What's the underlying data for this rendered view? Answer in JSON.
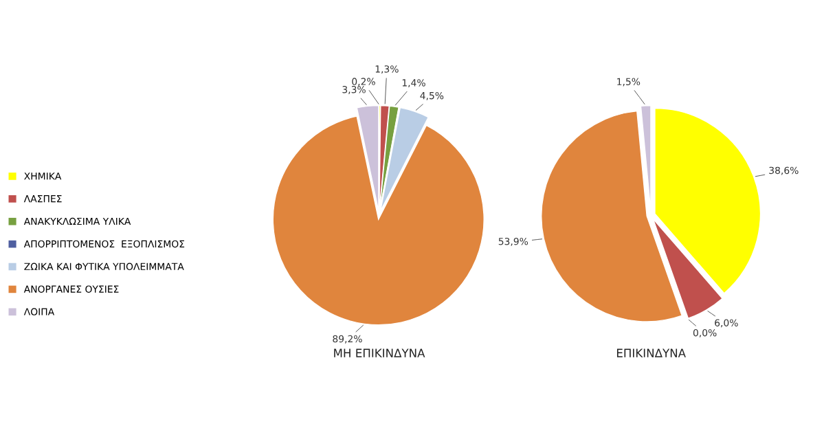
{
  "chart_data": [
    {
      "type": "pie",
      "title": "ΜΗ ΕΠΙΚΙΝΔΥΝΑ",
      "legend": "left",
      "categories": [
        "ΧΗΜΙΚΑ",
        "ΛΑΣΠΕΣ",
        "ΑΝΑΚΥΚΛΩΣΙΜΑ ΥΛΙΚΑ",
        "ΑΠΟΡΡΙΠΤΟΜΕΝΟΣ  ΕΞΟΠΛΙΣΜΟΣ",
        "ΖΩΙΚΑ ΚΑΙ ΦΥΤΙΚΑ ΥΠΟΛΕΙΜΜΑΤΑ",
        "ΑΝΟΡΓΑΝΕΣ ΟΥΣΙΕΣ",
        "ΛΟΙΠΑ"
      ],
      "values": [
        0.2,
        1.3,
        1.4,
        0.1,
        4.5,
        89.2,
        3.3
      ],
      "value_labels": [
        "0,2%",
        "1,3%",
        "1,4%",
        null,
        "4,5%",
        "89,2%",
        "3,3%"
      ],
      "colors": [
        "#ffff00",
        "#c0504d",
        "#77a040",
        "#4f5fa0",
        "#b9cde5",
        "#e0853d",
        "#ccc1da"
      ]
    },
    {
      "type": "pie",
      "title": "ΕΠΙΚΙΝΔΥΝΑ",
      "categories": [
        null,
        null,
        null,
        null,
        null
      ],
      "values": [
        38.6,
        6.0,
        0.0,
        53.9,
        1.5
      ],
      "value_labels": [
        "38,6%",
        "6,0%",
        "0,0%",
        "53,9%",
        "1,5%"
      ],
      "colors": [
        "#ffff00",
        "#c0504d",
        "#77a040",
        "#e0853d",
        "#ccc1da"
      ]
    }
  ]
}
